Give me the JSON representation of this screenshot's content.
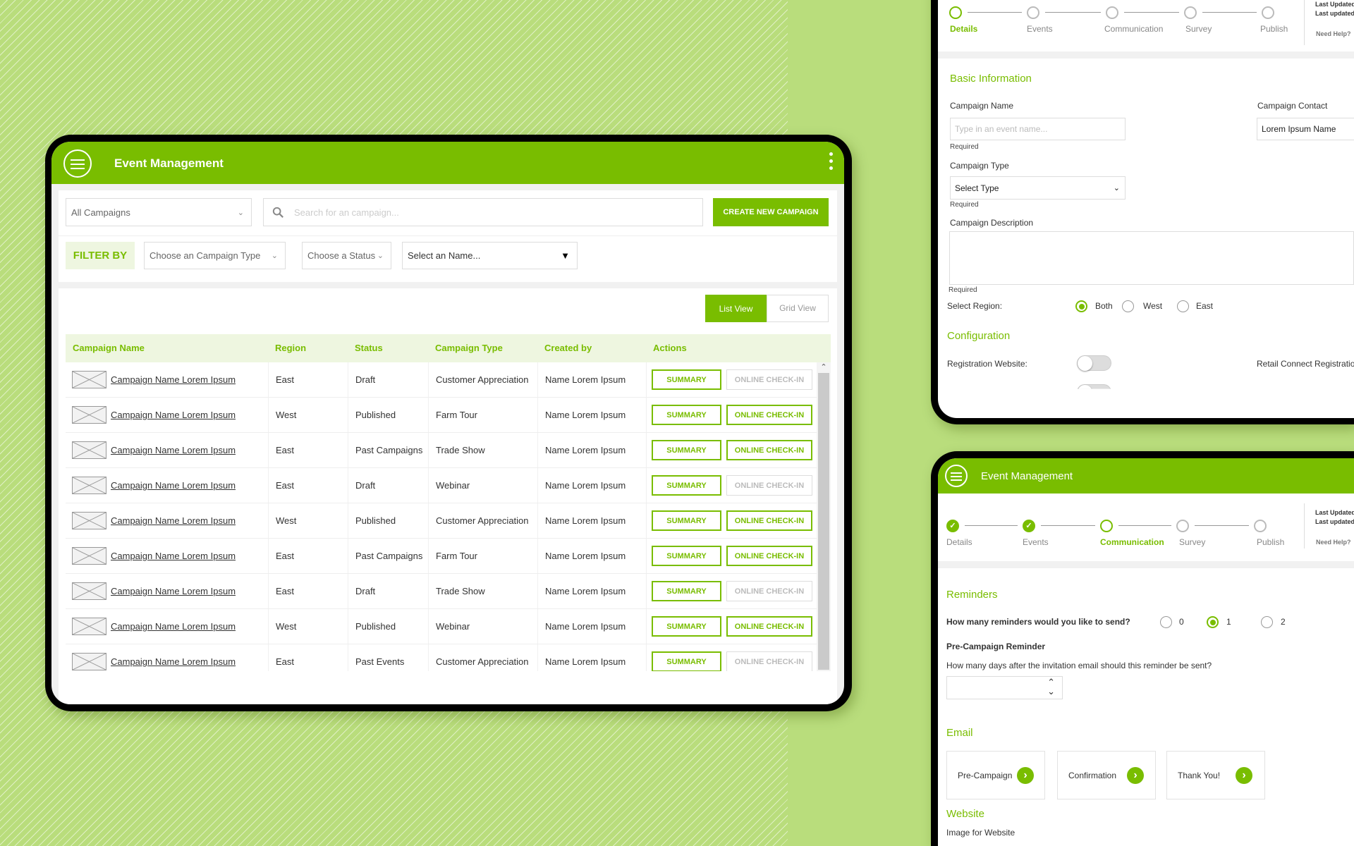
{
  "colors": {
    "brand": "#79bd00",
    "background": "#b9dd7c",
    "header_tint": "#eef6e0"
  },
  "main": {
    "title": "Event Management",
    "menu_icon": "hamburger-icon",
    "more_icon": "kebab-icon",
    "campaign_filter": "All Campaigns",
    "search_placeholder": "Search for an campaign...",
    "create_button": "CREATE NEW CAMPAIGN",
    "filter_by": "FILTER BY",
    "filter_type": "Choose an Campaign Type",
    "filter_status": "Choose a Status",
    "filter_name": "Select an Name...",
    "list_view": "List View",
    "grid_view": "Grid View",
    "columns": [
      "Campaign Name",
      "Region",
      "Status",
      "Campaign Type",
      "Created by",
      "Actions"
    ],
    "summary_label": "SUMMARY",
    "checkin_label": "ONLINE CHECK-IN",
    "rows": [
      {
        "name": "Campaign Name Lorem Ipsum",
        "region": "East",
        "status": "Draft",
        "type": "Customer Appreciation",
        "created_by": "Name Lorem Ipsum",
        "checkin_enabled": false
      },
      {
        "name": "Campaign Name Lorem Ipsum",
        "region": "West",
        "status": "Published",
        "type": "Farm Tour",
        "created_by": "Name Lorem Ipsum",
        "checkin_enabled": true
      },
      {
        "name": "Campaign Name Lorem Ipsum",
        "region": "East",
        "status": "Past Campaigns",
        "type": "Trade Show",
        "created_by": "Name Lorem Ipsum",
        "checkin_enabled": true
      },
      {
        "name": "Campaign Name Lorem Ipsum",
        "region": "East",
        "status": "Draft",
        "type": "Webinar",
        "created_by": "Name Lorem Ipsum",
        "checkin_enabled": false
      },
      {
        "name": "Campaign Name Lorem Ipsum",
        "region": "West",
        "status": "Published",
        "type": "Customer Appreciation",
        "created_by": "Name Lorem Ipsum",
        "checkin_enabled": true
      },
      {
        "name": "Campaign Name Lorem Ipsum",
        "region": "East",
        "status": "Past Campaigns",
        "type": "Farm Tour",
        "created_by": "Name Lorem Ipsum",
        "checkin_enabled": true
      },
      {
        "name": "Campaign Name Lorem Ipsum",
        "region": "East",
        "status": "Draft",
        "type": "Trade Show",
        "created_by": "Name Lorem Ipsum",
        "checkin_enabled": false
      },
      {
        "name": "Campaign Name Lorem Ipsum",
        "region": "West",
        "status": "Published",
        "type": "Webinar",
        "created_by": "Name Lorem Ipsum",
        "checkin_enabled": true
      },
      {
        "name": "Campaign Name Lorem Ipsum",
        "region": "East",
        "status": "Past Events",
        "type": "Customer Appreciation",
        "created_by": "Name Lorem Ipsum",
        "checkin_enabled": false
      }
    ]
  },
  "details": {
    "steps": [
      "Details",
      "Events",
      "Communication",
      "Survey",
      "Publish"
    ],
    "active_step": 0,
    "last_updated_1": "Last Updated",
    "last_updated_2": "Last updated",
    "help": "Need Help?",
    "basic_info": "Basic Information",
    "campaign_name_label": "Campaign Name",
    "campaign_name_placeholder": "Type in an event name...",
    "required": "Required",
    "campaign_contact_label": "Campaign Contact",
    "campaign_contact_value": "Lorem Ipsum Name",
    "campaign_type_label": "Campaign Type",
    "campaign_type_value": "Select Type",
    "description_label": "Campaign Description",
    "region_label": "Select Region:",
    "regions": [
      "Both",
      "West",
      "East"
    ],
    "selected_region": "Both",
    "configuration": "Configuration",
    "registration_website": "Registration Website:",
    "registration_website_on": false,
    "retail_connect": "Retail Connect Registration"
  },
  "communication": {
    "title": "Event Management",
    "steps": [
      "Details",
      "Events",
      "Communication",
      "Survey",
      "Publish"
    ],
    "active_step": 2,
    "last_updated_1": "Last Updated",
    "last_updated_2": "Last updated",
    "help": "Need Help?",
    "reminders": "Reminders",
    "reminder_question": "How many reminders would you like to send?",
    "reminder_options": [
      "0",
      "1",
      "2"
    ],
    "selected_reminders": "1",
    "pre_campaign_reminder": "Pre-Campaign Reminder",
    "days_question": "How many days after the invitation email should this reminder be sent?",
    "email": "Email",
    "email_cards": [
      "Pre-Campaign",
      "Confirmation",
      "Thank You!"
    ],
    "website": "Website",
    "image_for_website": "Image for Website"
  }
}
